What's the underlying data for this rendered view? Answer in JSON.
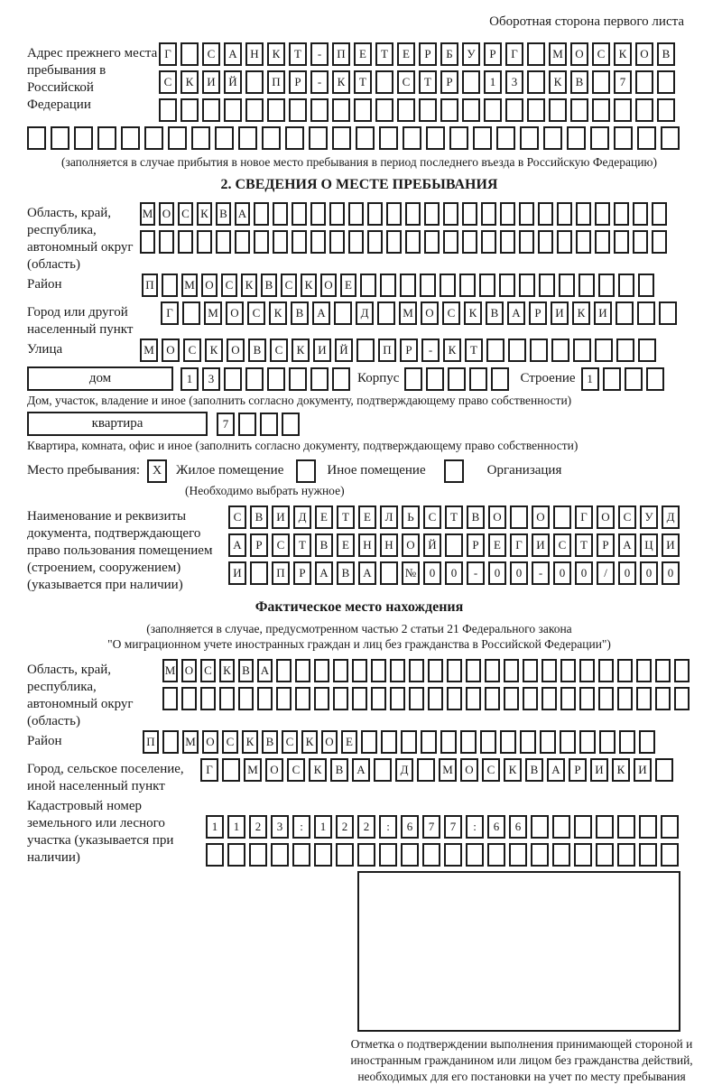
{
  "page": {
    "header_note": "Оборотная сторона первого листа"
  },
  "prev_address": {
    "label": "Адрес прежнего места пребывания в Российской Федерации",
    "rows": [
      "Г САНКТ-ПЕТЕРБУРГ МОСКОВ",
      "СКИЙ ПР-КТ СТР 13 КВ 7  ",
      "                        "
    ],
    "extra_row": "                            ",
    "note": "(заполняется в случае прибытия в новое место пребывания в период последнего въезда в Российскую Федерацию)"
  },
  "section2": {
    "title": "2. СВЕДЕНИЯ О МЕСТЕ ПРЕБЫВАНИЯ",
    "region": {
      "label": "Область, край, республика, автономный округ (область)",
      "rows": [
        "МОСКВА                      ",
        "                            "
      ]
    },
    "district": {
      "label": "Район",
      "row": "П МОСКВСКОЕ               "
    },
    "city": {
      "label": "Город или другой населенный пункт",
      "row": "Г МОСКВА Д МОСКВАРИКИ   "
    },
    "street": {
      "label": "Улица",
      "row": "МОСКОВСКИЙ ПР-КТ        "
    },
    "house": {
      "box_label": "дом",
      "cells": "13      ",
      "korpus_label": "Корпус",
      "korpus_cells": "     ",
      "stroenie_label": "Строение",
      "stroenie_cells": "1   ",
      "note": "Дом, участок, владение и иное (заполнить согласно документу, подтверждающему право собственности)"
    },
    "apartment": {
      "box_label": "квартира",
      "cells": "7   ",
      "note": "Квартира, комната, офис и иное (заполнить согласно документу, подтверждающему право собственности)"
    },
    "stay_type": {
      "label": "Место пребывания:",
      "options": [
        {
          "label": "Жилое помещение",
          "checked": "X"
        },
        {
          "label": "Иное помещение",
          "checked": ""
        },
        {
          "label": "Организация",
          "checked": ""
        }
      ],
      "note": "(Необходимо выбрать нужное)"
    },
    "document": {
      "label": "Наименование и реквизиты документа, подтверждающего право пользования помещением (строением, сооружением) (указывается при наличии)",
      "rows": [
        "СВИДЕТЕЛЬСТВО О ГОСУД",
        "АРСТВЕННОЙ РЕГИСТРАЦИ",
        "И ПРАВА №00-00-00/000"
      ]
    }
  },
  "actual_location": {
    "title": "Фактическое место нахождения",
    "note_line1": "(заполняется в случае, предусмотренном частью 2 статьи 21 Федерального закона",
    "note_line2": "\"О миграционном учете иностранных граждан и лиц без гражданства в Российской Федерации\")",
    "region": {
      "label": "Область, край, республика, автономный округ (область)",
      "rows": [
        "МОСКВА                      ",
        "                            "
      ]
    },
    "district": {
      "label": "Район",
      "row": "П МОСКВСКОЕ               "
    },
    "city": {
      "label": "Город, сельское поселение, иной населенный пункт",
      "row": "Г МОСКВА Д МОСКВАРИКИ "
    },
    "cadastre": {
      "label": "Кадастровый номер земельного или лесного участка (указывается при наличии)",
      "rows": [
        "1123:122:677:66       ",
        "                      "
      ]
    }
  },
  "stamp": {
    "note": "Отметка о подтверждении выполнения принимающей стороной и иностранным гражданином или лицом без гражданства действий, необходимых для его постановки на учет по месту пребывания"
  }
}
